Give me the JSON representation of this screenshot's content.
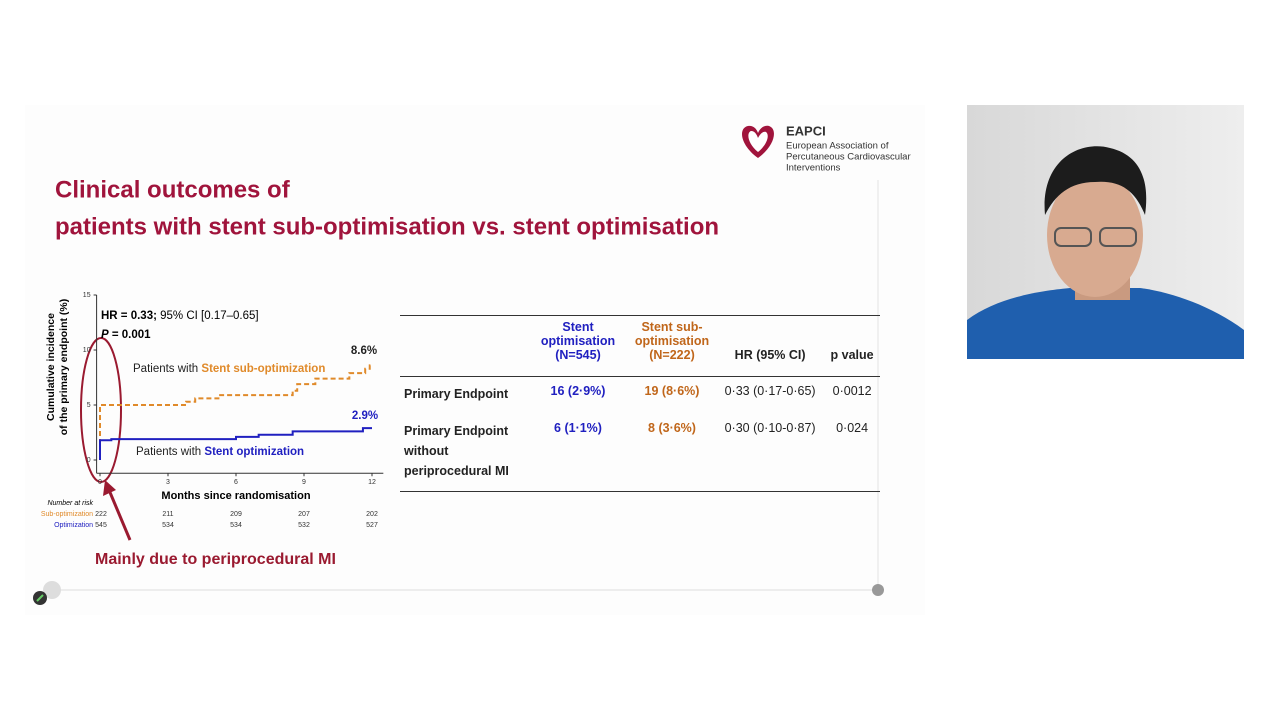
{
  "logo": {
    "name": "EAPCI",
    "lines": [
      "European Association of",
      "Percutaneous Cardiovascular",
      "Interventions"
    ]
  },
  "slide": {
    "title": [
      "Clinical outcomes of",
      "patients with stent sub-optimisation vs. stent optimisation"
    ]
  },
  "chart_data": {
    "type": "line",
    "y_label": [
      "Cumulative incidence",
      "of the primary endpoint (%)"
    ],
    "x_label": "Months since randomisation",
    "xlim": [
      -0.15,
      12.5
    ],
    "xticks": [
      0,
      3,
      6,
      9,
      12
    ],
    "ylim": [
      -1.2,
      15
    ],
    "yticks": [
      0,
      5,
      10,
      15
    ],
    "hr": "HR = 0.33;",
    "ci": "95% CI [0.17–0.65]",
    "p_symbol": "P",
    "p_text": "= 0.001",
    "label_prefix": "Patients with",
    "series": [
      {
        "name": "Stent sub-optimization",
        "color": "#e08a2a",
        "dashed": true,
        "end_label": "8.6%",
        "x": [
          0,
          0,
          3.8,
          3.8,
          4.2,
          4.2,
          5.3,
          5.3,
          8.5,
          8.5,
          8.7,
          8.7,
          9.5,
          9.5,
          11,
          11,
          11.7,
          11.7,
          11.9,
          11.9,
          12
        ],
        "values": [
          0,
          5,
          5,
          5.3,
          5.3,
          5.6,
          5.6,
          5.9,
          5.9,
          6.3,
          6.3,
          6.9,
          6.9,
          7.4,
          7.4,
          7.9,
          7.9,
          8.3,
          8.3,
          8.6,
          8.6
        ]
      },
      {
        "name": "Stent optimization",
        "color": "#2020c0",
        "dashed": false,
        "end_label": "2.9%",
        "x": [
          0,
          0,
          0.5,
          0.5,
          6,
          6,
          7,
          7,
          8.5,
          8.5,
          11.6,
          11.6,
          12
        ],
        "values": [
          0,
          1.8,
          1.8,
          1.9,
          1.9,
          2.1,
          2.1,
          2.3,
          2.3,
          2.6,
          2.6,
          2.9,
          2.9
        ]
      }
    ],
    "risk_table": {
      "title": "Number at risk",
      "rows": [
        {
          "name": "Sub-optimization",
          "values": [
            222,
            211,
            209,
            207,
            202
          ]
        },
        {
          "name": "Optimization",
          "values": [
            545,
            534,
            534,
            532,
            527
          ]
        }
      ]
    },
    "annotation": "Mainly due to periprocedural MI"
  },
  "table": {
    "header": [
      "Stent optimisation (N=545)",
      "Stent sub-optimisation (N=222)",
      "HR (95% CI)",
      "p value"
    ],
    "rows": [
      [
        "Primary Endpoint",
        "16 (2·9%)",
        "19 (8·6%)",
        "0·33 (0·17-0·65)",
        "0·0012"
      ],
      [
        "Primary Endpoint without periprocedural MI",
        "6 (1·1%)",
        "8 (3·6%)",
        "0·30 (0·10-0·87)",
        "0·024"
      ]
    ]
  }
}
